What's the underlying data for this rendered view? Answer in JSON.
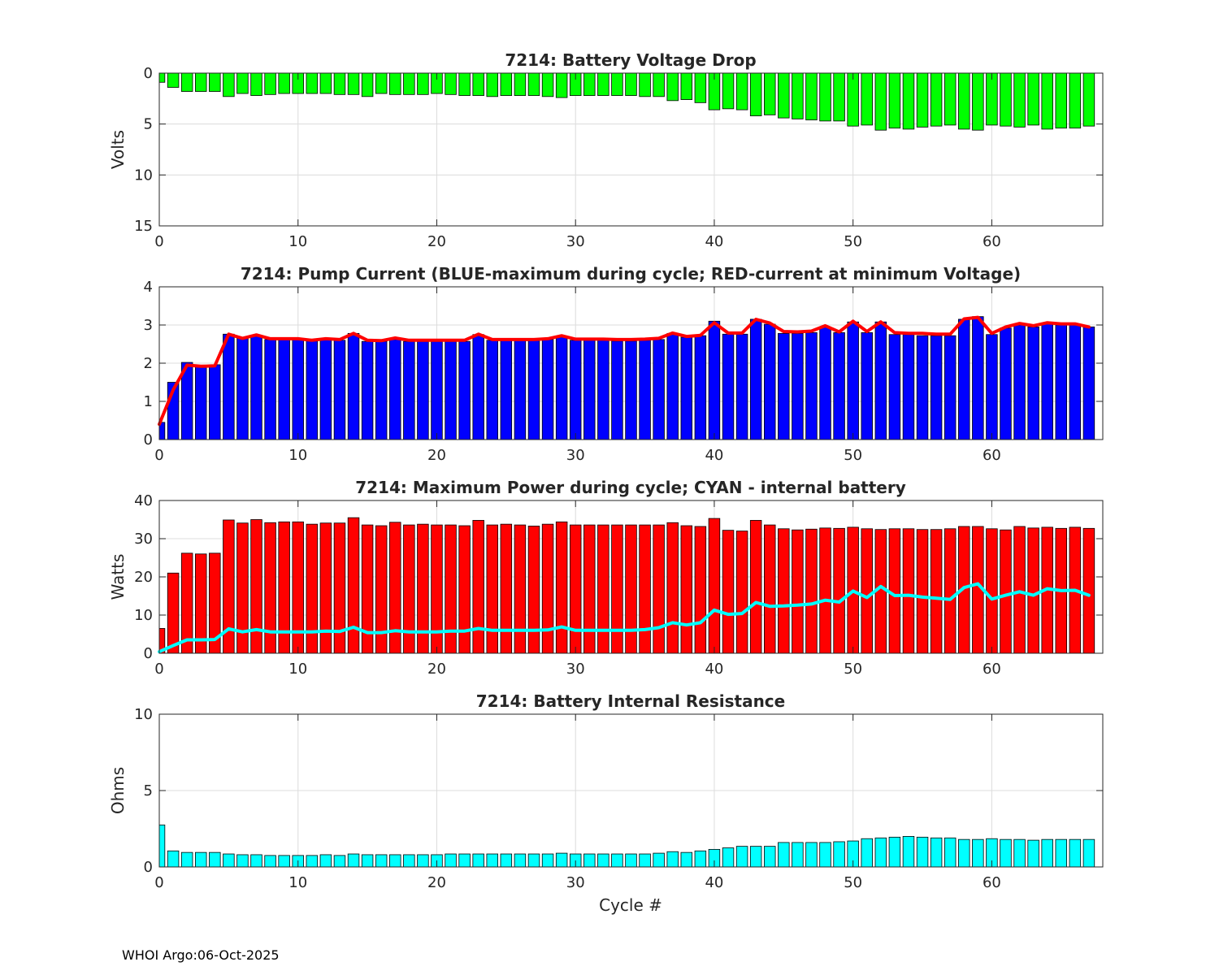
{
  "footer": "WHOI Argo:06-Oct-2025",
  "colors": {
    "voltage": "#00ff00",
    "pump_max": "#0000ff",
    "pump_min_voltage_line": "#ff0000",
    "power": "#ff0000",
    "power_internal_line": "#00ffff",
    "resistance": "#00ffff",
    "grid": "#dcdcdc",
    "axis": "#262626"
  },
  "chart_data": [
    {
      "type": "bar",
      "title": "7214: Battery Voltage Drop",
      "xlabel": "",
      "ylabel": "Volts",
      "xlim": [
        0,
        68
      ],
      "ylim": [
        0,
        15
      ],
      "y_reversed": true,
      "xticks": [
        0,
        10,
        20,
        30,
        40,
        50,
        60
      ],
      "yticks": [
        0,
        5,
        10,
        15
      ],
      "grid": true,
      "x": [
        0,
        1,
        2,
        3,
        4,
        5,
        6,
        7,
        8,
        9,
        10,
        11,
        12,
        13,
        14,
        15,
        16,
        17,
        18,
        19,
        20,
        21,
        22,
        23,
        24,
        25,
        26,
        27,
        28,
        29,
        30,
        31,
        32,
        33,
        34,
        35,
        36,
        37,
        38,
        39,
        40,
        41,
        42,
        43,
        44,
        45,
        46,
        47,
        48,
        49,
        50,
        51,
        52,
        53,
        54,
        55,
        56,
        57,
        58,
        59,
        60,
        61,
        62,
        63,
        64,
        65,
        66,
        67
      ],
      "series": [
        {
          "name": "Voltage drop",
          "values": [
            0.9,
            1.4,
            1.8,
            1.8,
            1.8,
            2.3,
            2.0,
            2.2,
            2.1,
            2.0,
            2.0,
            2.0,
            2.0,
            2.1,
            2.1,
            2.3,
            2.0,
            2.1,
            2.1,
            2.1,
            2.0,
            2.1,
            2.2,
            2.2,
            2.3,
            2.2,
            2.2,
            2.2,
            2.3,
            2.4,
            2.2,
            2.2,
            2.2,
            2.2,
            2.2,
            2.3,
            2.3,
            2.7,
            2.6,
            2.9,
            3.6,
            3.5,
            3.6,
            4.2,
            4.1,
            4.4,
            4.5,
            4.6,
            4.7,
            4.7,
            5.2,
            5.1,
            5.6,
            5.4,
            5.5,
            5.3,
            5.2,
            5.1,
            5.5,
            5.6,
            5.1,
            5.2,
            5.3,
            5.1,
            5.5,
            5.4,
            5.4,
            5.2
          ]
        }
      ]
    },
    {
      "type": "bar",
      "title": "7214: Pump Current (BLUE-maximum during cycle; RED-current at minimum Voltage)",
      "xlabel": "",
      "ylabel": "",
      "xlim": [
        0,
        68
      ],
      "ylim": [
        0,
        4
      ],
      "xticks": [
        0,
        10,
        20,
        30,
        40,
        50,
        60
      ],
      "yticks": [
        0,
        1,
        2,
        3,
        4
      ],
      "grid": true,
      "x": [
        0,
        1,
        2,
        3,
        4,
        5,
        6,
        7,
        8,
        9,
        10,
        11,
        12,
        13,
        14,
        15,
        16,
        17,
        18,
        19,
        20,
        21,
        22,
        23,
        24,
        25,
        26,
        27,
        28,
        29,
        30,
        31,
        32,
        33,
        34,
        35,
        36,
        37,
        38,
        39,
        40,
        41,
        42,
        43,
        44,
        45,
        46,
        47,
        48,
        49,
        50,
        51,
        52,
        53,
        54,
        55,
        56,
        57,
        58,
        59,
        60,
        61,
        62,
        63,
        64,
        65,
        66,
        67
      ],
      "series": [
        {
          "name": "Maximum during cycle",
          "style": "bar",
          "values": [
            0.45,
            1.5,
            2.02,
            1.92,
            1.96,
            2.76,
            2.65,
            2.72,
            2.62,
            2.62,
            2.62,
            2.58,
            2.62,
            2.6,
            2.78,
            2.57,
            2.57,
            2.62,
            2.57,
            2.57,
            2.57,
            2.57,
            2.57,
            2.75,
            2.6,
            2.6,
            2.6,
            2.6,
            2.62,
            2.7,
            2.6,
            2.6,
            2.6,
            2.58,
            2.58,
            2.6,
            2.62,
            2.78,
            2.68,
            2.72,
            3.1,
            2.76,
            2.76,
            3.15,
            3.02,
            2.78,
            2.78,
            2.8,
            2.95,
            2.8,
            3.08,
            2.8,
            3.08,
            2.75,
            2.75,
            2.72,
            2.72,
            2.72,
            3.15,
            3.22,
            2.75,
            2.92,
            3.0,
            2.95,
            3.05,
            3.0,
            3.0,
            2.95
          ]
        },
        {
          "name": "Current at minimum Voltage",
          "style": "line",
          "values": [
            0.4,
            1.3,
            1.95,
            1.92,
            1.93,
            2.76,
            2.65,
            2.74,
            2.64,
            2.64,
            2.64,
            2.6,
            2.64,
            2.62,
            2.78,
            2.6,
            2.59,
            2.66,
            2.6,
            2.6,
            2.6,
            2.6,
            2.6,
            2.76,
            2.62,
            2.62,
            2.62,
            2.62,
            2.64,
            2.72,
            2.63,
            2.63,
            2.63,
            2.62,
            2.62,
            2.63,
            2.65,
            2.79,
            2.7,
            2.73,
            3.06,
            2.79,
            2.79,
            3.15,
            3.05,
            2.83,
            2.82,
            2.84,
            2.98,
            2.82,
            3.1,
            2.83,
            3.08,
            2.8,
            2.78,
            2.78,
            2.76,
            2.76,
            3.16,
            3.2,
            2.78,
            2.95,
            3.04,
            2.98,
            3.06,
            3.03,
            3.03,
            2.95
          ]
        }
      ]
    },
    {
      "type": "bar",
      "title": "7214: Maximum Power during cycle; CYAN - internal battery",
      "xlabel": "",
      "ylabel": "Watts",
      "xlim": [
        0,
        68
      ],
      "ylim": [
        0,
        40
      ],
      "xticks": [
        0,
        10,
        20,
        30,
        40,
        50,
        60
      ],
      "yticks": [
        0,
        10,
        20,
        30,
        40
      ],
      "grid": true,
      "x": [
        0,
        1,
        2,
        3,
        4,
        5,
        6,
        7,
        8,
        9,
        10,
        11,
        12,
        13,
        14,
        15,
        16,
        17,
        18,
        19,
        20,
        21,
        22,
        23,
        24,
        25,
        26,
        27,
        28,
        29,
        30,
        31,
        32,
        33,
        34,
        35,
        36,
        37,
        38,
        39,
        40,
        41,
        42,
        43,
        44,
        45,
        46,
        47,
        48,
        49,
        50,
        51,
        52,
        53,
        54,
        55,
        56,
        57,
        58,
        59,
        60,
        61,
        62,
        63,
        64,
        65,
        66,
        67
      ],
      "series": [
        {
          "name": "Maximum Power",
          "style": "bar",
          "values": [
            6.5,
            21,
            26.2,
            26,
            26.2,
            34.9,
            34.1,
            35,
            34.2,
            34.4,
            34.4,
            33.8,
            34.1,
            34.1,
            35.5,
            33.6,
            33.4,
            34.3,
            33.6,
            33.8,
            33.6,
            33.6,
            33.4,
            34.8,
            33.6,
            33.8,
            33.6,
            33.3,
            33.8,
            34.4,
            33.6,
            33.6,
            33.6,
            33.6,
            33.6,
            33.6,
            33.6,
            34.2,
            33.4,
            33.2,
            35.3,
            32.2,
            32.0,
            34.8,
            33.6,
            32.6,
            32.3,
            32.5,
            32.8,
            32.7,
            33.0,
            32.6,
            32.4,
            32.6,
            32.6,
            32.4,
            32.4,
            32.6,
            33.2,
            33.2,
            32.6,
            32.3,
            33.2,
            32.8,
            33.0,
            32.7,
            33.0,
            32.7
          ]
        },
        {
          "name": "Internal battery",
          "style": "line",
          "values": [
            0.4,
            2,
            3.5,
            3.5,
            3.6,
            6.4,
            5.6,
            6.2,
            5.6,
            5.6,
            5.6,
            5.6,
            5.8,
            5.7,
            6.8,
            5.4,
            5.4,
            5.9,
            5.6,
            5.6,
            5.6,
            5.8,
            5.8,
            6.5,
            6.0,
            6.0,
            6.0,
            6.0,
            6.1,
            6.9,
            6.0,
            6.0,
            6.0,
            6.0,
            6.0,
            6.2,
            6.7,
            8.0,
            7.4,
            8.0,
            11.3,
            10.2,
            10.4,
            13.3,
            12.3,
            12.4,
            12.6,
            12.9,
            13.9,
            13.4,
            16.3,
            14.6,
            17.5,
            15.1,
            15.2,
            14.7,
            14.4,
            14.1,
            17.2,
            18.2,
            14.2,
            15.2,
            16.1,
            15.2,
            16.9,
            16.4,
            16.5,
            15.2
          ]
        }
      ]
    },
    {
      "type": "bar",
      "title": "7214: Battery Internal Resistance",
      "xlabel": "Cycle #",
      "ylabel": "Ohms",
      "xlim": [
        0,
        68
      ],
      "ylim": [
        0,
        10
      ],
      "xticks": [
        0,
        10,
        20,
        30,
        40,
        50,
        60
      ],
      "yticks": [
        0,
        5,
        10
      ],
      "grid": true,
      "x": [
        0,
        1,
        2,
        3,
        4,
        5,
        6,
        7,
        8,
        9,
        10,
        11,
        12,
        13,
        14,
        15,
        16,
        17,
        18,
        19,
        20,
        21,
        22,
        23,
        24,
        25,
        26,
        27,
        28,
        29,
        30,
        31,
        32,
        33,
        34,
        35,
        36,
        37,
        38,
        39,
        40,
        41,
        42,
        43,
        44,
        45,
        46,
        47,
        48,
        49,
        50,
        51,
        52,
        53,
        54,
        55,
        56,
        57,
        58,
        59,
        60,
        61,
        62,
        63,
        64,
        65,
        66,
        67
      ],
      "series": [
        {
          "name": "Internal Resistance",
          "values": [
            2.75,
            1.05,
            0.95,
            0.95,
            0.95,
            0.85,
            0.8,
            0.8,
            0.75,
            0.75,
            0.75,
            0.75,
            0.8,
            0.75,
            0.85,
            0.8,
            0.8,
            0.8,
            0.8,
            0.8,
            0.8,
            0.85,
            0.85,
            0.85,
            0.85,
            0.85,
            0.85,
            0.85,
            0.85,
            0.9,
            0.85,
            0.85,
            0.85,
            0.85,
            0.85,
            0.85,
            0.9,
            1.0,
            0.95,
            1.05,
            1.15,
            1.25,
            1.35,
            1.35,
            1.35,
            1.6,
            1.6,
            1.6,
            1.6,
            1.65,
            1.7,
            1.85,
            1.9,
            1.95,
            2.0,
            1.95,
            1.9,
            1.9,
            1.8,
            1.8,
            1.85,
            1.8,
            1.8,
            1.75,
            1.8,
            1.8,
            1.8,
            1.8
          ]
        }
      ]
    }
  ]
}
